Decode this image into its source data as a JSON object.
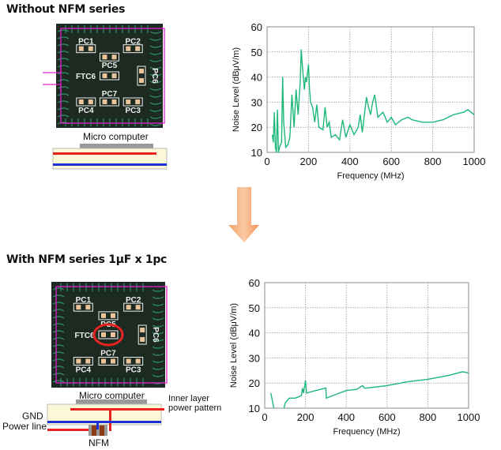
{
  "sections": [
    {
      "title": "Without NFM series",
      "micro_label": "Micro computer",
      "pcb_labels": [
        "PC1",
        "PC2",
        "PC5",
        "FTC6",
        "PC6",
        "PC7",
        "PC4",
        "PC3"
      ]
    },
    {
      "title": "With NFM series 1μF x 1pc",
      "micro_label": "Micro computer",
      "pcb_labels": [
        "PC1",
        "PC2",
        "PC5",
        "FTC6",
        "PC6",
        "PC7",
        "PC4",
        "PC3"
      ],
      "gnd_label": "GND",
      "power_label": "Power line",
      "nfm_label": "NFM",
      "inner_label_1": "Inner layer",
      "inner_label_2": "power pattern"
    }
  ],
  "colors": {
    "series": "#1db87a",
    "arrow": "#f4955a",
    "power": "#e8231f",
    "gnd": "#1f2fd8",
    "outline": "#e020d0",
    "board": "#fbf8d8"
  },
  "icons": {
    "arrow": "arrow-down-icon"
  },
  "chart_data": [
    {
      "type": "line",
      "xlabel": "Frequency (MHz)",
      "ylabel": "Noise Level (dBμV/m)",
      "xlim": [
        0,
        1000
      ],
      "ylim": [
        10,
        60
      ],
      "xticks": [
        0,
        200,
        400,
        600,
        800,
        1000
      ],
      "yticks": [
        10,
        20,
        30,
        40,
        50,
        60
      ],
      "grid": true,
      "x": [
        25,
        30,
        35,
        40,
        45,
        50,
        55,
        60,
        70,
        75,
        80,
        90,
        100,
        110,
        120,
        130,
        140,
        150,
        160,
        165,
        170,
        180,
        185,
        190,
        200,
        205,
        210,
        220,
        230,
        240,
        250,
        270,
        280,
        290,
        300,
        310,
        330,
        350,
        365,
        380,
        400,
        420,
        440,
        450,
        460,
        480,
        490,
        500,
        510,
        520,
        535,
        560,
        580,
        600,
        620,
        650,
        680,
        700,
        750,
        800,
        850,
        900,
        950,
        970,
        1000
      ],
      "y": [
        17,
        14,
        26,
        12,
        10,
        27,
        10,
        12,
        14,
        40,
        22,
        12,
        13,
        16,
        33,
        20,
        35,
        25,
        38,
        51,
        45,
        35,
        40,
        38,
        45,
        35,
        30,
        28,
        22,
        29,
        20,
        19,
        28,
        20,
        22,
        16,
        17,
        15,
        23,
        16,
        21,
        17,
        20,
        25,
        18,
        32,
        28,
        25,
        30,
        33,
        24,
        26,
        22,
        24,
        21,
        23,
        24,
        23,
        22,
        22,
        23,
        25,
        26,
        27,
        25
      ]
    },
    {
      "type": "line",
      "xlabel": "Frequency (MHz)",
      "ylabel": "Noise Level (dBμV/m)",
      "xlim": [
        0,
        1000
      ],
      "ylim": [
        10,
        60
      ],
      "xticks": [
        0,
        200,
        400,
        600,
        800,
        1000
      ],
      "yticks": [
        10,
        20,
        30,
        40,
        50,
        60
      ],
      "grid": true,
      "x": [
        30,
        45,
        50,
        90,
        95,
        100,
        120,
        150,
        180,
        185,
        190,
        200,
        205,
        250,
        298,
        300,
        302,
        350,
        400,
        450,
        480,
        490,
        500,
        550,
        600,
        700,
        800,
        900,
        970,
        1000
      ],
      "y": [
        16,
        10,
        8,
        8,
        10,
        12,
        14,
        14,
        15,
        18,
        16,
        21,
        16,
        17,
        18,
        18,
        14,
        15.5,
        17,
        17.5,
        19,
        18,
        18,
        18.5,
        19,
        20.5,
        21.5,
        23,
        24.5,
        24
      ]
    }
  ]
}
